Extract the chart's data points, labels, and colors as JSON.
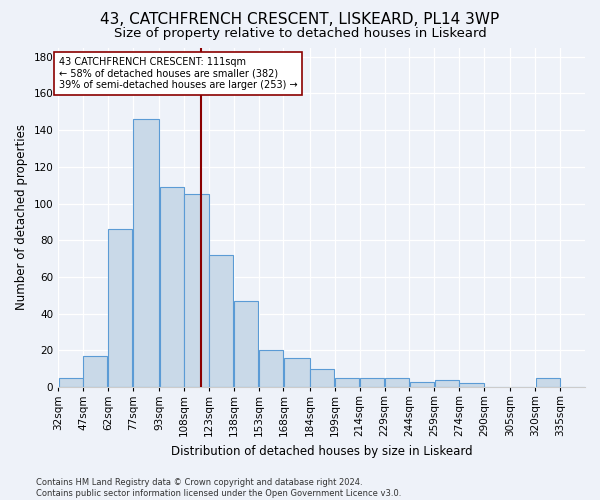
{
  "title1": "43, CATCHFRENCH CRESCENT, LISKEARD, PL14 3WP",
  "title2": "Size of property relative to detached houses in Liskeard",
  "xlabel": "Distribution of detached houses by size in Liskeard",
  "ylabel": "Number of detached properties",
  "bin_labels": [
    "32sqm",
    "47sqm",
    "62sqm",
    "77sqm",
    "93sqm",
    "108sqm",
    "123sqm",
    "138sqm",
    "153sqm",
    "168sqm",
    "184sqm",
    "199sqm",
    "214sqm",
    "229sqm",
    "244sqm",
    "259sqm",
    "274sqm",
    "290sqm",
    "305sqm",
    "320sqm",
    "335sqm"
  ],
  "bar_heights": [
    5,
    17,
    86,
    146,
    109,
    105,
    72,
    47,
    20,
    16,
    10,
    5,
    5,
    5,
    3,
    4,
    2,
    0,
    0,
    5,
    0
  ],
  "bar_color": "#c9d9e8",
  "bar_edge_color": "#5b9bd5",
  "vline_x": 111,
  "vline_color": "#8b0000",
  "annotation_text": "43 CATCHFRENCH CRESCENT: 111sqm\n← 58% of detached houses are smaller (382)\n39% of semi-detached houses are larger (253) →",
  "annotation_box_color": "white",
  "annotation_box_edge_color": "#8b0000",
  "ylim": [
    0,
    185
  ],
  "yticks": [
    0,
    20,
    40,
    60,
    80,
    100,
    120,
    140,
    160,
    180
  ],
  "bin_edges": [
    24.5,
    39.5,
    54.5,
    69.5,
    85.5,
    100.5,
    115.5,
    130.5,
    145.5,
    160.5,
    176.5,
    191.5,
    206.5,
    221.5,
    236.5,
    251.5,
    266.5,
    281.5,
    297.5,
    312.5,
    327.5,
    342.5
  ],
  "footnote": "Contains HM Land Registry data © Crown copyright and database right 2024.\nContains public sector information licensed under the Open Government Licence v3.0.",
  "background_color": "#eef2f9",
  "grid_color": "#ffffff",
  "title_fontsize": 11,
  "subtitle_fontsize": 9.5,
  "axis_label_fontsize": 8.5,
  "tick_fontsize": 7.5,
  "annotation_fontsize": 7.0,
  "footnote_fontsize": 6.0
}
